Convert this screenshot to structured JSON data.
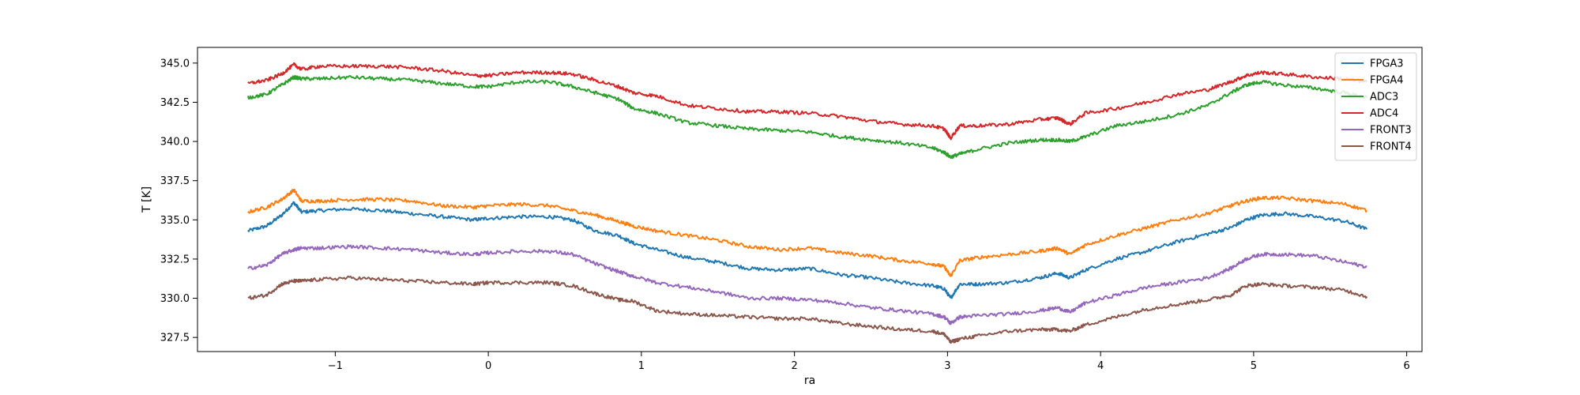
{
  "chart_data": {
    "type": "line",
    "title": "",
    "xlabel": "ra",
    "ylabel": "T [K]",
    "xlim": [
      -1.9,
      6.1
    ],
    "ylim": [
      326.6,
      346.0
    ],
    "xticks": [
      -1,
      0,
      1,
      2,
      3,
      4,
      5,
      6
    ],
    "xtick_labels": [
      "−1",
      "0",
      "1",
      "2",
      "3",
      "4",
      "5",
      "6"
    ],
    "yticks": [
      327.5,
      330.0,
      332.5,
      335.0,
      337.5,
      340.0,
      342.5,
      345.0
    ],
    "ytick_labels": [
      "327.5",
      "330.0",
      "332.5",
      "335.0",
      "337.5",
      "340.0",
      "342.5",
      "345.0"
    ],
    "grid": false,
    "legend_position": "top-right",
    "series": [
      {
        "name": "FPGA3",
        "color": "#1f77b4",
        "x": [
          -1.57,
          -1.45,
          -1.35,
          -1.27,
          -1.22,
          -1.1,
          -0.9,
          -0.7,
          -0.5,
          -0.3,
          -0.1,
          0.0,
          0.2,
          0.4,
          0.55,
          0.7,
          0.85,
          0.95,
          1.1,
          1.3,
          1.5,
          1.7,
          1.9,
          2.1,
          2.3,
          2.5,
          2.7,
          2.9,
          2.98,
          3.02,
          3.08,
          3.2,
          3.4,
          3.6,
          3.72,
          3.8,
          3.9,
          4.1,
          4.3,
          4.5,
          4.7,
          4.85,
          4.95,
          5.05,
          5.2,
          5.4,
          5.6,
          5.74
        ],
        "y": [
          334.3,
          334.6,
          335.3,
          336.1,
          335.5,
          335.6,
          335.7,
          335.6,
          335.4,
          335.2,
          335.0,
          335.1,
          335.2,
          335.2,
          335.0,
          334.3,
          334.0,
          333.5,
          333.1,
          332.6,
          332.3,
          331.9,
          331.8,
          331.9,
          331.5,
          331.3,
          331.0,
          330.8,
          330.6,
          330.0,
          330.9,
          330.9,
          331.0,
          331.3,
          331.6,
          331.3,
          331.8,
          332.5,
          333.0,
          333.6,
          334.1,
          334.5,
          335.0,
          335.3,
          335.4,
          335.2,
          334.9,
          334.4
        ]
      },
      {
        "name": "FPGA4",
        "color": "#ff7f0e",
        "x": [
          -1.57,
          -1.45,
          -1.35,
          -1.27,
          -1.22,
          -1.1,
          -0.9,
          -0.7,
          -0.5,
          -0.3,
          -0.1,
          0.0,
          0.2,
          0.4,
          0.55,
          0.7,
          0.85,
          0.95,
          1.1,
          1.3,
          1.5,
          1.7,
          1.9,
          2.1,
          2.3,
          2.5,
          2.7,
          2.9,
          2.98,
          3.02,
          3.08,
          3.2,
          3.4,
          3.6,
          3.72,
          3.8,
          3.9,
          4.1,
          4.3,
          4.5,
          4.7,
          4.85,
          4.95,
          5.05,
          5.2,
          5.4,
          5.6,
          5.74
        ],
        "y": [
          335.5,
          335.8,
          336.3,
          336.9,
          336.2,
          336.2,
          336.3,
          336.3,
          336.2,
          335.9,
          335.8,
          335.9,
          336.0,
          335.9,
          335.6,
          335.3,
          334.9,
          334.6,
          334.3,
          334.0,
          333.7,
          333.3,
          333.1,
          333.2,
          332.9,
          332.7,
          332.4,
          332.2,
          332.0,
          331.4,
          332.4,
          332.6,
          332.8,
          333.0,
          333.2,
          332.8,
          333.4,
          334.0,
          334.5,
          335.0,
          335.4,
          335.9,
          336.2,
          336.4,
          336.4,
          336.2,
          336.0,
          335.6
        ]
      },
      {
        "name": "ADC3",
        "color": "#2ca02c",
        "x": [
          -1.57,
          -1.45,
          -1.35,
          -1.27,
          -1.22,
          -1.1,
          -0.9,
          -0.7,
          -0.5,
          -0.3,
          -0.1,
          0.0,
          0.2,
          0.4,
          0.55,
          0.7,
          0.85,
          0.95,
          1.1,
          1.3,
          1.5,
          1.7,
          1.9,
          2.1,
          2.3,
          2.5,
          2.7,
          2.9,
          2.98,
          3.02,
          3.08,
          3.2,
          3.4,
          3.6,
          3.72,
          3.8,
          3.9,
          4.1,
          4.3,
          4.5,
          4.7,
          4.85,
          4.95,
          5.05,
          5.2,
          5.4,
          5.6,
          5.74
        ],
        "y": [
          342.8,
          343.0,
          343.6,
          344.1,
          344.0,
          344.0,
          344.1,
          344.0,
          343.9,
          343.7,
          343.5,
          343.5,
          343.8,
          343.8,
          343.5,
          343.1,
          342.7,
          342.1,
          341.8,
          341.2,
          341.0,
          340.8,
          340.7,
          340.6,
          340.3,
          340.1,
          339.9,
          339.6,
          339.3,
          339.0,
          339.2,
          339.5,
          339.9,
          340.1,
          340.1,
          340.0,
          340.3,
          341.0,
          341.3,
          341.7,
          342.3,
          343.1,
          343.6,
          343.8,
          343.6,
          343.4,
          343.1,
          342.8
        ]
      },
      {
        "name": "ADC4",
        "color": "#d62728",
        "x": [
          -1.57,
          -1.45,
          -1.35,
          -1.27,
          -1.22,
          -1.1,
          -0.9,
          -0.7,
          -0.5,
          -0.3,
          -0.1,
          0.0,
          0.2,
          0.4,
          0.55,
          0.7,
          0.85,
          0.95,
          1.1,
          1.3,
          1.5,
          1.7,
          1.9,
          2.1,
          2.3,
          2.5,
          2.7,
          2.9,
          2.98,
          3.02,
          3.08,
          3.2,
          3.4,
          3.6,
          3.72,
          3.8,
          3.9,
          4.1,
          4.3,
          4.5,
          4.7,
          4.85,
          4.95,
          5.05,
          5.2,
          5.4,
          5.6,
          5.74
        ],
        "y": [
          343.7,
          343.9,
          344.3,
          344.9,
          344.6,
          344.8,
          344.8,
          344.8,
          344.7,
          344.5,
          344.2,
          344.2,
          344.4,
          344.4,
          344.3,
          343.9,
          343.5,
          343.1,
          342.9,
          342.3,
          342.1,
          341.9,
          341.9,
          341.8,
          341.6,
          341.3,
          341.1,
          341.0,
          340.8,
          340.2,
          341.0,
          341.0,
          341.1,
          341.4,
          341.5,
          341.1,
          341.8,
          342.1,
          342.5,
          343.0,
          343.3,
          343.8,
          344.2,
          344.4,
          344.3,
          344.1,
          344.0,
          343.8
        ]
      },
      {
        "name": "FRONT3",
        "color": "#9467bd",
        "x": [
          -1.57,
          -1.45,
          -1.35,
          -1.27,
          -1.22,
          -1.1,
          -0.9,
          -0.7,
          -0.5,
          -0.3,
          -0.1,
          0.0,
          0.2,
          0.4,
          0.55,
          0.7,
          0.85,
          0.95,
          1.1,
          1.3,
          1.5,
          1.7,
          1.9,
          2.1,
          2.3,
          2.5,
          2.7,
          2.9,
          2.98,
          3.02,
          3.08,
          3.2,
          3.4,
          3.6,
          3.72,
          3.8,
          3.9,
          4.1,
          4.3,
          4.5,
          4.7,
          4.85,
          4.95,
          5.05,
          5.2,
          5.4,
          5.6,
          5.74
        ],
        "y": [
          331.9,
          332.1,
          332.8,
          333.1,
          333.2,
          333.2,
          333.3,
          333.2,
          333.1,
          332.9,
          332.8,
          332.9,
          333.0,
          333.0,
          332.8,
          332.2,
          331.7,
          331.4,
          331.0,
          330.7,
          330.4,
          330.0,
          330.0,
          329.9,
          329.7,
          329.4,
          329.2,
          329.0,
          328.8,
          328.4,
          328.8,
          328.9,
          329.0,
          329.2,
          329.4,
          329.1,
          329.7,
          330.2,
          330.7,
          331.0,
          331.3,
          331.9,
          332.5,
          332.8,
          332.8,
          332.7,
          332.3,
          332.0
        ]
      },
      {
        "name": "FRONT4",
        "color": "#8c564b",
        "x": [
          -1.57,
          -1.45,
          -1.35,
          -1.27,
          -1.22,
          -1.1,
          -0.9,
          -0.7,
          -0.5,
          -0.3,
          -0.1,
          0.0,
          0.2,
          0.4,
          0.55,
          0.7,
          0.85,
          0.95,
          1.1,
          1.3,
          1.5,
          1.7,
          1.9,
          2.1,
          2.3,
          2.5,
          2.7,
          2.9,
          2.98,
          3.02,
          3.08,
          3.2,
          3.4,
          3.6,
          3.72,
          3.8,
          3.9,
          4.1,
          4.3,
          4.5,
          4.7,
          4.85,
          4.95,
          5.05,
          5.2,
          5.4,
          5.6,
          5.74
        ],
        "y": [
          330.0,
          330.2,
          330.9,
          331.1,
          331.1,
          331.2,
          331.3,
          331.2,
          331.1,
          331.0,
          330.9,
          331.0,
          331.0,
          331.0,
          330.8,
          330.3,
          329.9,
          329.8,
          329.2,
          329.0,
          328.9,
          328.8,
          328.7,
          328.7,
          328.4,
          328.2,
          328.0,
          327.9,
          327.7,
          327.2,
          327.4,
          327.6,
          327.9,
          328.0,
          328.0,
          327.9,
          328.3,
          328.8,
          329.3,
          329.6,
          329.9,
          330.2,
          330.8,
          330.9,
          330.8,
          330.7,
          330.5,
          330.1
        ]
      }
    ]
  }
}
